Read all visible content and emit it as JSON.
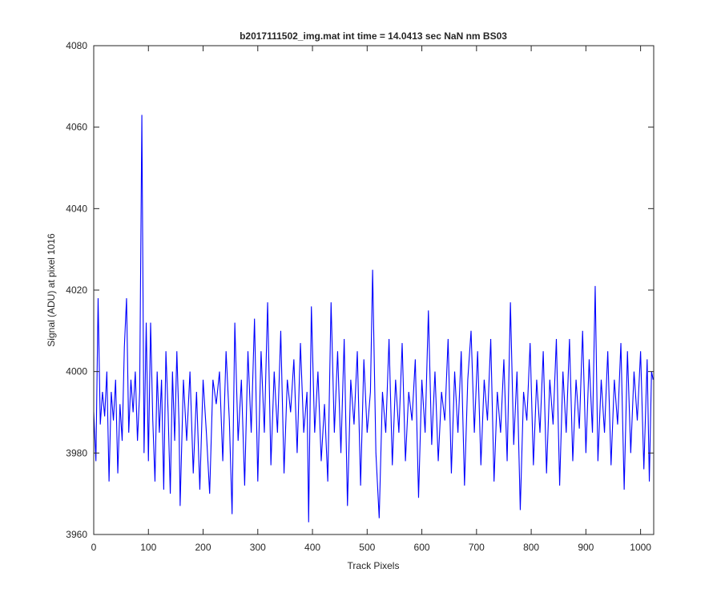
{
  "chart_data": {
    "type": "line",
    "title": "b2017111502_img.mat int time = 14.0413 sec  NaN nm BS03",
    "xlabel": "Track Pixels",
    "ylabel": "Signal (ADU) at pixel 1016",
    "xlim": [
      0,
      1024
    ],
    "ylim": [
      3960,
      4080
    ],
    "xticks": [
      0,
      100,
      200,
      300,
      400,
      500,
      600,
      700,
      800,
      900,
      1000
    ],
    "yticks": [
      3960,
      3980,
      4000,
      4020,
      4040,
      4060,
      4080
    ],
    "grid": false,
    "series": [
      {
        "color": "#0000ff",
        "x": [
          0,
          4,
          8,
          12,
          16,
          20,
          24,
          28,
          32,
          36,
          40,
          44,
          48,
          52,
          56,
          60,
          64,
          68,
          72,
          76,
          80,
          84,
          88,
          92,
          96,
          100,
          104,
          108,
          112,
          116,
          120,
          124,
          128,
          132,
          136,
          140,
          144,
          148,
          152,
          156,
          158,
          164,
          170,
          176,
          182,
          188,
          194,
          200,
          206,
          212,
          218,
          224,
          230,
          236,
          242,
          248,
          253,
          258,
          264,
          270,
          276,
          282,
          288,
          294,
          300,
          306,
          312,
          318,
          324,
          330,
          336,
          342,
          348,
          354,
          360,
          366,
          372,
          378,
          384,
          390,
          393,
          398,
          404,
          410,
          416,
          422,
          428,
          434,
          440,
          446,
          452,
          458,
          464,
          470,
          476,
          482,
          488,
          494,
          500,
          506,
          510,
          516,
          522,
          528,
          534,
          540,
          546,
          552,
          558,
          564,
          570,
          576,
          582,
          588,
          594,
          600,
          606,
          612,
          618,
          624,
          630,
          636,
          642,
          648,
          654,
          660,
          666,
          672,
          678,
          684,
          690,
          696,
          702,
          708,
          714,
          720,
          726,
          732,
          738,
          744,
          750,
          756,
          762,
          768,
          774,
          780,
          786,
          792,
          798,
          804,
          810,
          816,
          822,
          828,
          834,
          840,
          846,
          852,
          858,
          864,
          870,
          876,
          882,
          888,
          894,
          900,
          906,
          912,
          917,
          922,
          928,
          934,
          940,
          946,
          952,
          958,
          964,
          970,
          976,
          982,
          988,
          994,
          1000,
          1006,
          1012,
          1016,
          1020,
          1023
        ],
        "values": [
          3990,
          3978,
          4018,
          3987,
          3995,
          3989,
          4000,
          3973,
          3995,
          3988,
          3998,
          3975,
          3992,
          3983,
          4006,
          4018,
          3985,
          3998,
          3990,
          4000,
          3983,
          3995,
          4063,
          3980,
          4012,
          3978,
          4012,
          3988,
          3973,
          4000,
          3985,
          3998,
          3971,
          4005,
          3990,
          3970,
          4000,
          3983,
          4005,
          3987,
          3967,
          3998,
          3983,
          4000,
          3975,
          3995,
          3971,
          3998,
          3985,
          3970,
          3998,
          3992,
          4000,
          3978,
          4005,
          3988,
          3965,
          4012,
          3983,
          3998,
          3972,
          4005,
          3985,
          4013,
          3973,
          4005,
          3985,
          4017,
          3977,
          4000,
          3985,
          4010,
          3975,
          3998,
          3990,
          4003,
          3980,
          4007,
          3985,
          3995,
          3963,
          4016,
          3985,
          4000,
          3978,
          3992,
          3973,
          4017,
          3985,
          4005,
          3980,
          4008,
          3967,
          3998,
          3987,
          4005,
          3972,
          4003,
          3985,
          3995,
          4025,
          3980,
          3964,
          3995,
          3985,
          4008,
          3977,
          3998,
          3985,
          4007,
          3978,
          3995,
          3988,
          4003,
          3969,
          3998,
          3985,
          4015,
          3982,
          4000,
          3978,
          3995,
          3988,
          4008,
          3975,
          4000,
          3985,
          4005,
          3972,
          3998,
          4010,
          3985,
          4005,
          3977,
          3998,
          3988,
          4008,
          3973,
          3995,
          3985,
          4003,
          3978,
          4017,
          3982,
          4000,
          3966,
          3995,
          3988,
          4007,
          3977,
          3998,
          3985,
          4005,
          3975,
          3998,
          3987,
          4008,
          3972,
          4000,
          3985,
          4008,
          3978,
          3998,
          3986,
          4010,
          3980,
          4003,
          3985,
          4021,
          3978,
          3998,
          3985,
          4005,
          3977,
          3998,
          3987,
          4007,
          3971,
          4005,
          3980,
          4000,
          3988,
          4005,
          3976,
          4003,
          3973,
          4000,
          3998
        ]
      }
    ]
  }
}
